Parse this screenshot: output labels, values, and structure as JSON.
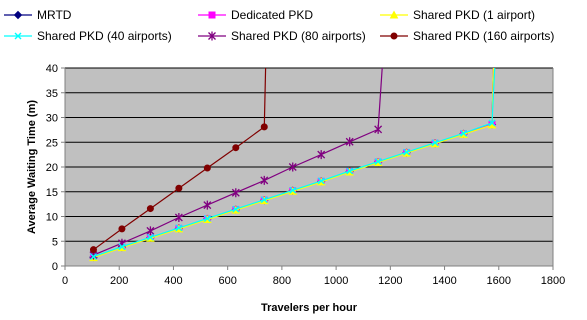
{
  "chart_data": {
    "type": "line",
    "title": "",
    "xlabel": "Travelers per hour",
    "ylabel": "Average Waiting Time (m)",
    "xlim": [
      0,
      1800
    ],
    "ylim": [
      0,
      40
    ],
    "xticks": [
      0,
      200,
      400,
      600,
      800,
      1000,
      1200,
      1400,
      1600,
      1800
    ],
    "yticks": [
      0,
      5,
      10,
      15,
      20,
      25,
      30,
      35,
      40
    ],
    "grid": "horizontal",
    "plot_background": "#c0c0c0",
    "legend_position": "top",
    "series": [
      {
        "name": "MRTD",
        "color": "#000080",
        "marker": "diamond",
        "points": [
          [
            105,
            1.8
          ],
          [
            210,
            3.8
          ],
          [
            315,
            5.7
          ],
          [
            420,
            7.6
          ],
          [
            525,
            9.5
          ],
          [
            630,
            11.4
          ],
          [
            735,
            13.3
          ],
          [
            840,
            15.2
          ],
          [
            945,
            17.1
          ],
          [
            1050,
            19.1
          ],
          [
            1155,
            21.0
          ],
          [
            1260,
            22.9
          ],
          [
            1365,
            24.8
          ],
          [
            1470,
            26.7
          ],
          [
            1575,
            28.6
          ],
          [
            1580,
            40
          ]
        ]
      },
      {
        "name": "Dedicated PKD",
        "color": "#ff00ff",
        "marker": "square",
        "points": [
          [
            105,
            1.8
          ],
          [
            210,
            3.8
          ],
          [
            315,
            5.7
          ],
          [
            420,
            7.6
          ],
          [
            525,
            9.5
          ],
          [
            630,
            11.4
          ],
          [
            735,
            13.3
          ],
          [
            840,
            15.2
          ],
          [
            945,
            17.1
          ],
          [
            1050,
            19.1
          ],
          [
            1155,
            21.0
          ],
          [
            1260,
            22.9
          ],
          [
            1365,
            24.8
          ],
          [
            1470,
            26.7
          ],
          [
            1575,
            28.6
          ],
          [
            1580,
            40
          ]
        ]
      },
      {
        "name": "Shared PKD (1 airport)",
        "color": "#ffff00",
        "marker": "triangle",
        "points": [
          [
            105,
            1.7
          ],
          [
            210,
            3.7
          ],
          [
            315,
            5.6
          ],
          [
            420,
            7.5
          ],
          [
            525,
            9.4
          ],
          [
            630,
            11.3
          ],
          [
            735,
            13.2
          ],
          [
            840,
            15.1
          ],
          [
            945,
            17.0
          ],
          [
            1050,
            19.0
          ],
          [
            1155,
            20.9
          ],
          [
            1260,
            22.8
          ],
          [
            1365,
            24.7
          ],
          [
            1470,
            26.6
          ],
          [
            1575,
            28.5
          ],
          [
            1580,
            40
          ]
        ]
      },
      {
        "name": "Shared PKD (40 airports)",
        "color": "#00ffff",
        "marker": "x",
        "points": [
          [
            105,
            1.9
          ],
          [
            210,
            3.9
          ],
          [
            315,
            5.8
          ],
          [
            420,
            7.7
          ],
          [
            525,
            9.6
          ],
          [
            630,
            11.5
          ],
          [
            735,
            13.4
          ],
          [
            840,
            15.3
          ],
          [
            945,
            17.2
          ],
          [
            1050,
            19.2
          ],
          [
            1155,
            21.1
          ],
          [
            1260,
            23.0
          ],
          [
            1365,
            24.9
          ],
          [
            1470,
            26.8
          ],
          [
            1575,
            28.9
          ],
          [
            1585,
            40
          ]
        ]
      },
      {
        "name": "Shared PKD (80 airports)",
        "color": "#800080",
        "marker": "asterisk",
        "points": [
          [
            105,
            2.2
          ],
          [
            210,
            4.6
          ],
          [
            315,
            7.1
          ],
          [
            420,
            9.8
          ],
          [
            525,
            12.3
          ],
          [
            630,
            14.8
          ],
          [
            735,
            17.3
          ],
          [
            840,
            20.0
          ],
          [
            945,
            22.5
          ],
          [
            1050,
            25.1
          ],
          [
            1155,
            27.6
          ],
          [
            1170,
            40
          ]
        ]
      },
      {
        "name": "Shared PKD (160 airports)",
        "color": "#800000",
        "marker": "circle",
        "points": [
          [
            105,
            3.3
          ],
          [
            210,
            7.5
          ],
          [
            315,
            11.6
          ],
          [
            420,
            15.7
          ],
          [
            525,
            19.8
          ],
          [
            630,
            23.9
          ],
          [
            735,
            28.1
          ],
          [
            740,
            40
          ]
        ]
      }
    ]
  }
}
